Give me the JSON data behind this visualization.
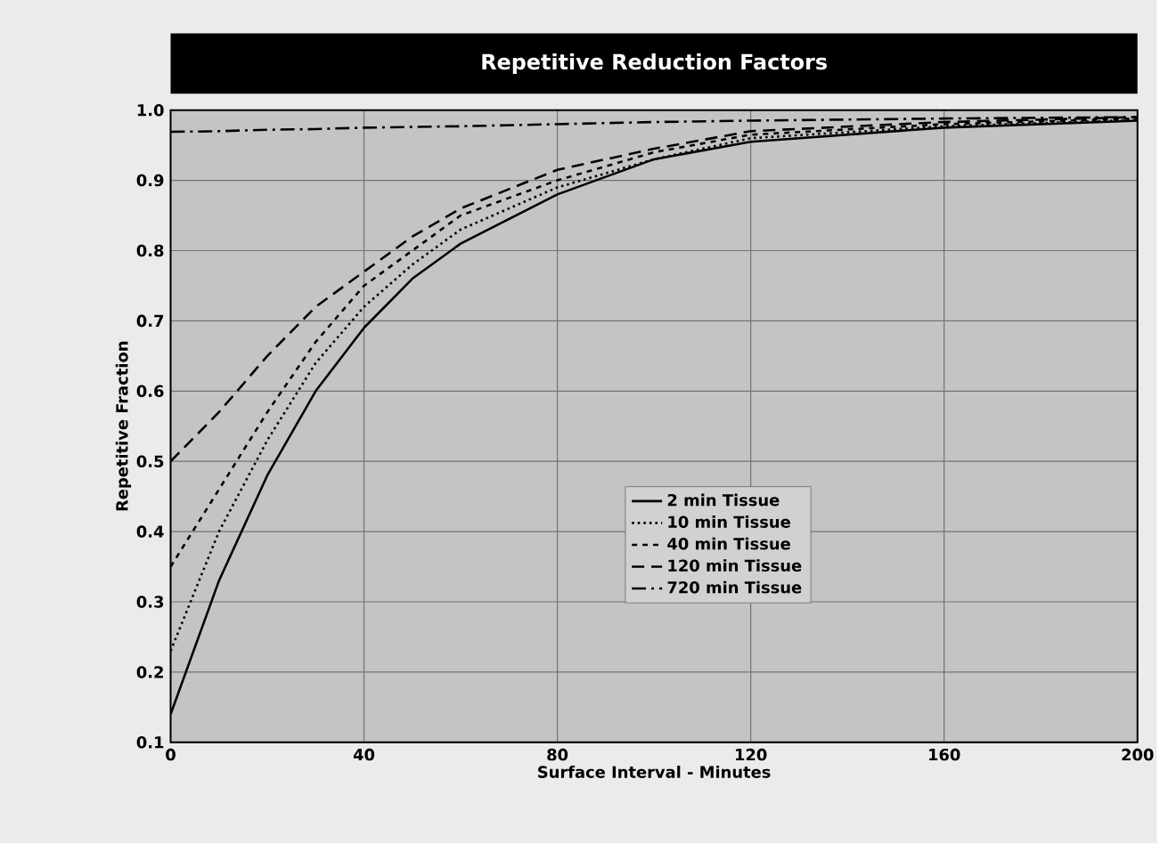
{
  "chart_data": {
    "type": "line",
    "title": "Repetitive Reduction Factors",
    "xlabel": "Surface Interval - Minutes",
    "ylabel": "Repetitive Fraction",
    "x": [
      0,
      10,
      20,
      30,
      40,
      50,
      60,
      80,
      100,
      120,
      160,
      200
    ],
    "series": [
      {
        "name": "2 min Tissue",
        "color": "#000000",
        "line_style": "solid",
        "values": [
          0.14,
          0.33,
          0.48,
          0.6,
          0.69,
          0.76,
          0.81,
          0.88,
          0.93,
          0.955,
          0.975,
          0.985
        ]
      },
      {
        "name": "10 min Tissue",
        "color": "#000000",
        "line_style": "dotted",
        "values": [
          0.23,
          0.4,
          0.53,
          0.64,
          0.72,
          0.78,
          0.83,
          0.89,
          0.93,
          0.96,
          0.977,
          0.986
        ]
      },
      {
        "name": "40 min Tissue",
        "color": "#000000",
        "line_style": "dashed",
        "values": [
          0.35,
          0.46,
          0.57,
          0.67,
          0.75,
          0.8,
          0.85,
          0.9,
          0.94,
          0.965,
          0.98,
          0.988
        ]
      },
      {
        "name": "120 min Tissue",
        "color": "#000000",
        "line_style": "long dashed",
        "values": [
          0.5,
          0.57,
          0.65,
          0.72,
          0.77,
          0.82,
          0.86,
          0.915,
          0.945,
          0.97,
          0.983,
          0.99
        ]
      },
      {
        "name": "720 min Tissue",
        "color": "#000000",
        "line_style": "dash dot",
        "values": [
          0.969,
          0.97,
          0.972,
          0.973,
          0.975,
          0.976,
          0.977,
          0.98,
          0.983,
          0.985,
          0.988,
          0.99
        ]
      }
    ],
    "xlim": [
      0,
      200
    ],
    "ylim": [
      0.1,
      1.0
    ],
    "xticks": [
      0,
      40,
      80,
      120,
      160,
      200
    ],
    "yticks": [
      0.1,
      0.2,
      0.3,
      0.4,
      0.5,
      0.6,
      0.7,
      0.8,
      0.9,
      {
        "value": 1.0,
        "label": "1.0"
      }
    ],
    "grid": true,
    "legend": "center",
    "marker": "none"
  }
}
